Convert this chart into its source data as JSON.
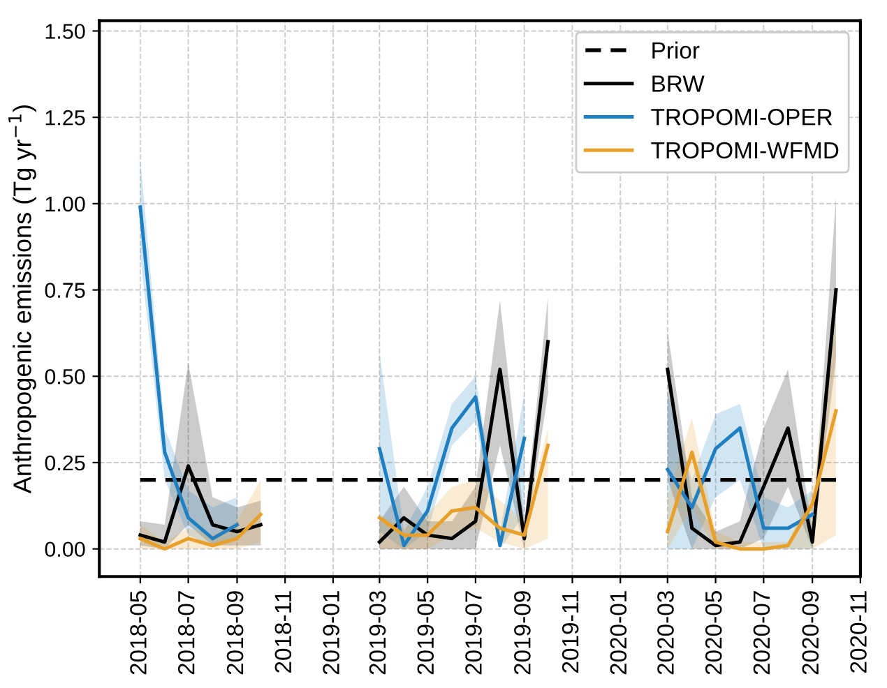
{
  "chart_data": {
    "type": "line",
    "ylabel": "Anthropogenic emissions (Tg yr$^{−1}$)",
    "x": [
      "2018-05",
      "2018-06",
      "2018-07",
      "2018-08",
      "2018-09",
      "2018-10",
      "2018-11",
      "2018-12",
      "2019-01",
      "2019-02",
      "2019-03",
      "2019-04",
      "2019-05",
      "2019-06",
      "2019-07",
      "2019-08",
      "2019-09",
      "2019-10",
      "2019-11",
      "2019-12",
      "2020-01",
      "2020-02",
      "2020-03",
      "2020-04",
      "2020-05",
      "2020-06",
      "2020-07",
      "2020-08",
      "2020-09",
      "2020-10"
    ],
    "series": [
      {
        "name": "Prior",
        "color": "#000000",
        "line_style": "dashed",
        "values": [
          0.2,
          0.2,
          0.2,
          0.2,
          0.2,
          0.2,
          0.2,
          0.2,
          0.2,
          0.2,
          0.2,
          0.2,
          0.2,
          0.2,
          0.2,
          0.2,
          0.2,
          0.2,
          0.2,
          0.2,
          0.2,
          0.2,
          0.2,
          0.2,
          0.2,
          0.2,
          0.2,
          0.2,
          0.2,
          0.2
        ]
      },
      {
        "name": "BRW",
        "color": "#000000",
        "line_style": "solid",
        "values": [
          0.04,
          0.02,
          0.24,
          0.07,
          0.05,
          0.07,
          null,
          null,
          null,
          null,
          0.02,
          0.09,
          0.04,
          0.03,
          0.08,
          0.52,
          0.03,
          0.6,
          null,
          null,
          null,
          null,
          0.52,
          0.06,
          0.01,
          0.02,
          0.18,
          0.35,
          0.02,
          0.75
        ],
        "lower": [
          0.01,
          0.0,
          0.07,
          0.01,
          0.01,
          0.01,
          null,
          null,
          null,
          null,
          0.0,
          0.0,
          0.0,
          0.0,
          0.0,
          0.3,
          0.0,
          0.45,
          null,
          null,
          null,
          null,
          0.2,
          0.0,
          0.0,
          0.0,
          0.03,
          0.18,
          0.0,
          0.55
        ],
        "upper": [
          0.08,
          0.07,
          0.54,
          0.15,
          0.12,
          0.14,
          null,
          null,
          null,
          null,
          0.08,
          0.18,
          0.08,
          0.08,
          0.18,
          0.72,
          0.08,
          0.73,
          null,
          null,
          null,
          null,
          0.63,
          0.15,
          0.05,
          0.08,
          0.35,
          0.52,
          0.05,
          1.02
        ]
      },
      {
        "name": "TROPOMI-OPER",
        "color": "#1f7fc0",
        "line_style": "solid",
        "values": [
          0.99,
          0.28,
          0.09,
          0.03,
          0.07,
          null,
          null,
          null,
          null,
          null,
          0.29,
          0.01,
          0.11,
          0.35,
          0.44,
          0.01,
          0.32,
          null,
          null,
          null,
          null,
          null,
          0.23,
          0.12,
          0.29,
          0.35,
          0.06,
          0.06,
          0.1,
          null
        ],
        "lower": [
          0.85,
          0.2,
          0.04,
          0.01,
          0.03,
          null,
          null,
          null,
          null,
          null,
          0.05,
          0.0,
          0.05,
          0.3,
          0.37,
          0.0,
          0.1,
          null,
          null,
          null,
          null,
          null,
          0.0,
          0.0,
          0.15,
          0.2,
          0.0,
          0.0,
          0.0,
          null
        ],
        "upper": [
          1.13,
          0.35,
          0.17,
          0.12,
          0.15,
          null,
          null,
          null,
          null,
          null,
          0.57,
          0.05,
          0.18,
          0.42,
          0.5,
          0.05,
          0.45,
          null,
          null,
          null,
          null,
          null,
          0.45,
          0.2,
          0.39,
          0.42,
          0.15,
          0.12,
          0.17,
          null
        ]
      },
      {
        "name": "TROPOMI-WFMD",
        "color": "#e8a02a",
        "line_style": "solid",
        "values": [
          0.03,
          0.0,
          0.03,
          0.01,
          0.03,
          0.1,
          null,
          null,
          null,
          null,
          0.09,
          0.04,
          0.04,
          0.11,
          0.12,
          0.06,
          0.04,
          0.3,
          null,
          null,
          null,
          null,
          0.05,
          0.28,
          0.02,
          0.0,
          0.0,
          0.01,
          0.13,
          0.4
        ],
        "lower": [
          0.0,
          0.0,
          0.0,
          0.0,
          0.0,
          0.02,
          null,
          null,
          null,
          null,
          0.0,
          0.0,
          0.0,
          0.04,
          0.06,
          0.02,
          0.0,
          0.03,
          null,
          null,
          null,
          null,
          0.0,
          0.12,
          0.0,
          0.0,
          0.0,
          0.0,
          0.0,
          0.04
        ],
        "upper": [
          0.07,
          0.02,
          0.06,
          0.04,
          0.08,
          0.2,
          null,
          null,
          null,
          null,
          0.1,
          0.06,
          0.1,
          0.18,
          0.2,
          0.14,
          0.08,
          0.35,
          null,
          null,
          null,
          null,
          0.15,
          0.38,
          0.05,
          0.02,
          0.02,
          0.02,
          0.17,
          0.66
        ]
      }
    ],
    "xlim": [
      "2018-03-10",
      "2020-11-01"
    ],
    "xticks": [
      "2018-05",
      "2018-07",
      "2018-09",
      "2018-11",
      "2019-01",
      "2019-03",
      "2019-05",
      "2019-07",
      "2019-09",
      "2019-11",
      "2020-01",
      "2020-03",
      "2020-05",
      "2020-07",
      "2020-09",
      "2020-11"
    ],
    "ylim": [
      -0.08,
      1.53
    ],
    "yticks": [
      {
        "value": 0,
        "label": "0.00"
      },
      {
        "value": 0.25,
        "label": "0.25"
      },
      {
        "value": 0.5,
        "label": "0.50"
      },
      {
        "value": 0.75,
        "label": "0.75"
      },
      {
        "value": 1,
        "label": "1.00"
      },
      {
        "value": 1.25,
        "label": "1.25"
      },
      {
        "value": 1.5,
        "label": "1.50"
      }
    ],
    "grid": true,
    "legend": "top right",
    "marker": "none"
  }
}
